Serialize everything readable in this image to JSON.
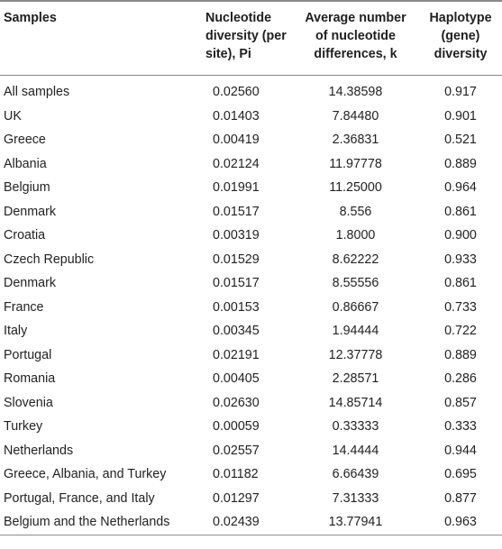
{
  "table": {
    "headers": [
      "Samples",
      "Nucleotide diversity (per site), Pi",
      "Average number of nucleotide differences, k",
      "Haplotype (gene) diversity"
    ],
    "rows": [
      [
        "All samples",
        "0.02560",
        "14.38598",
        "0.917"
      ],
      [
        "UK",
        "0.01403",
        "7.84480",
        "0.901"
      ],
      [
        "Greece",
        "0.00419",
        "2.36831",
        "0.521"
      ],
      [
        "Albania",
        "0.02124",
        "11.97778",
        "0.889"
      ],
      [
        "Belgium",
        "0.01991",
        "11.25000",
        "0.964"
      ],
      [
        "Denmark",
        "0.01517",
        "8.556",
        "0.861"
      ],
      [
        "Croatia",
        "0.00319",
        "1.8000",
        "0.900"
      ],
      [
        "Czech Republic",
        "0.01529",
        "8.62222",
        "0.933"
      ],
      [
        "Denmark",
        "0.01517",
        "8.55556",
        "0.861"
      ],
      [
        "France",
        "0.00153",
        "0.86667",
        "0.733"
      ],
      [
        "Italy",
        "0.00345",
        "1.94444",
        "0.722"
      ],
      [
        "Portugal",
        "0.02191",
        "12.37778",
        "0.889"
      ],
      [
        "Romania",
        "0.00405",
        "2.28571",
        "0.286"
      ],
      [
        "Slovenia",
        "0.02630",
        "14.85714",
        "0.857"
      ],
      [
        "Turkey",
        "0.00059",
        "0.33333",
        "0.333"
      ],
      [
        "Netherlands",
        "0.02557",
        "14.4444",
        "0.944"
      ],
      [
        "Greece, Albania, and Turkey",
        "0.01182",
        "6.66439",
        "0.695"
      ],
      [
        "Portugal, France, and Italy",
        "0.01297",
        "7.31333",
        "0.877"
      ],
      [
        "Belgium and the Netherlands",
        "0.02439",
        "13.77941",
        "0.963"
      ]
    ]
  }
}
